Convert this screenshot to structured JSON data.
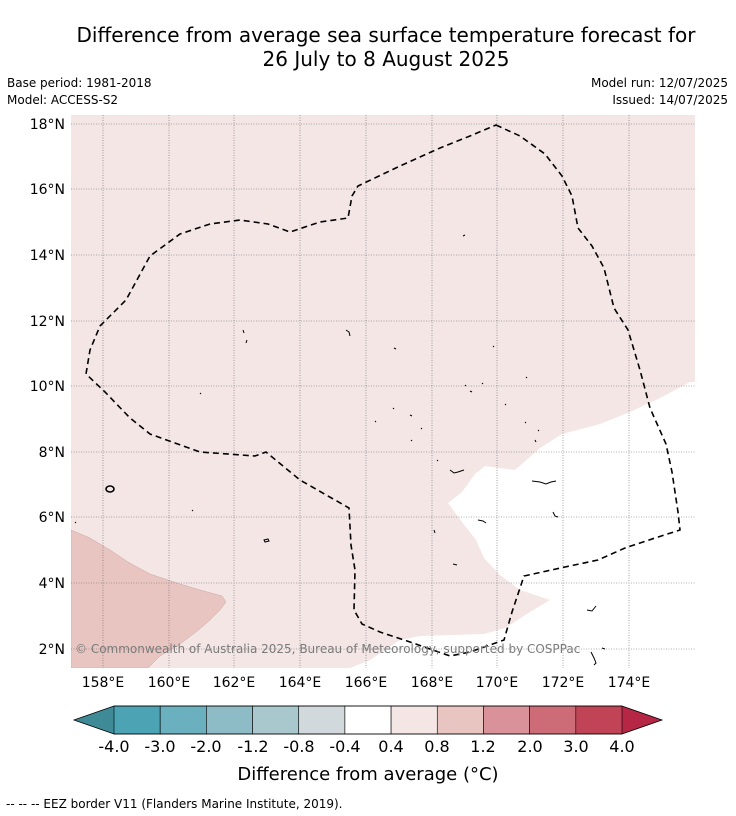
{
  "title": {
    "line1": "Difference from average sea surface temperature forecast for",
    "line2": "26 July to 8 August 2025"
  },
  "meta": {
    "base_period": "Base period: 1981-2018",
    "model": "Model: ACCESS-S2",
    "model_run": "Model run: 12/07/2025",
    "issued": "Issued: 14/07/2025"
  },
  "map": {
    "lon_ticks": [
      "158°E",
      "160°E",
      "162°E",
      "164°E",
      "166°E",
      "168°E",
      "170°E",
      "172°E",
      "174°E"
    ],
    "lat_ticks": [
      "18°N",
      "16°N",
      "14°N",
      "12°N",
      "10°N",
      "8°N",
      "6°N",
      "4°N",
      "2°N"
    ],
    "copyright": "© Commonwealth of Australia 2025, Bureau of Meteorology, supported by COSPPac"
  },
  "colorbar": {
    "labels": [
      "-4.0",
      "-3.0",
      "-2.0",
      "-1.2",
      "-0.8",
      "-0.4",
      "0.4",
      "0.8",
      "1.2",
      "2.0",
      "3.0",
      "4.0"
    ],
    "colors": [
      "#4ba3b4",
      "#6bb0be",
      "#8dbcc6",
      "#a9c8cd",
      "#d2d9dc",
      "#ffffff",
      "#f3e6e5",
      "#e9c5c1",
      "#d9919a",
      "#cd6b77",
      "#c04455"
    ],
    "under_color": "#3f8a97",
    "over_color": "#b52744",
    "title": "Difference from average (°C)"
  },
  "legend": {
    "eez": "--  --  -- EEZ border V11 (Flanders Marine Institute, 2019)."
  }
}
